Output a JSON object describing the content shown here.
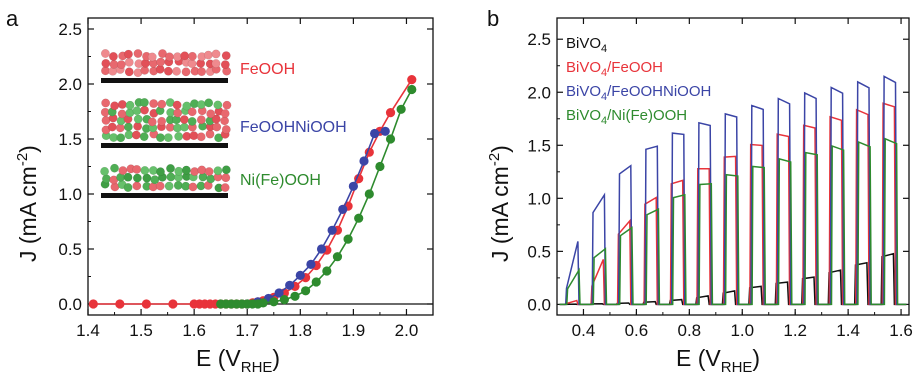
{
  "chart_data": [
    {
      "panel": "a",
      "type": "scatter",
      "xlabel_main": "E (V",
      "xlabel_sub": "RHE",
      "xlabel_close": ")",
      "ylabel_main": "J (mA cm",
      "ylabel_sup": "-2",
      "ylabel_close": ")",
      "xlim": [
        1.4,
        2.05
      ],
      "ylim": [
        -0.1,
        2.6
      ],
      "xticks": [
        1.4,
        1.5,
        1.6,
        1.7,
        1.8,
        1.9,
        2.0
      ],
      "yticks": [
        0.0,
        0.5,
        1.0,
        1.5,
        2.0,
        2.5
      ],
      "zero_line": true,
      "inset_labels": [
        {
          "text": "FeOOH",
          "color": "#e8333a"
        },
        {
          "text": "FeOOHNiOOH",
          "color": "#3b45a6"
        },
        {
          "text": "Ni(Fe)OOH",
          "color": "#2e8b2e"
        }
      ],
      "series": [
        {
          "name": "FeOOH",
          "color": "#e8333a",
          "x": [
            1.41,
            1.46,
            1.51,
            1.56,
            1.6,
            1.61,
            1.62,
            1.63,
            1.64,
            1.65,
            1.66,
            1.67,
            1.68,
            1.69,
            1.7,
            1.71,
            1.72,
            1.73,
            1.75,
            1.77,
            1.79,
            1.81,
            1.83,
            1.85,
            1.87,
            1.89,
            1.91,
            1.93,
            1.95,
            1.97,
            2.01
          ],
          "y": [
            0.0,
            0.0,
            0.0,
            0.0,
            0.0,
            0.0,
            0.0,
            0.0,
            0.0,
            0.0,
            0.0,
            0.0,
            0.0,
            0.0,
            0.0,
            0.01,
            0.02,
            0.03,
            0.06,
            0.1,
            0.16,
            0.24,
            0.35,
            0.49,
            0.67,
            0.89,
            1.14,
            1.38,
            1.57,
            1.74,
            2.04
          ]
        },
        {
          "name": "FeOOHNiOOH",
          "color": "#3b45a6",
          "x": [
            1.7,
            1.72,
            1.74,
            1.76,
            1.78,
            1.8,
            1.82,
            1.84,
            1.86,
            1.88,
            1.9,
            1.92,
            1.94,
            1.96
          ],
          "y": [
            0.0,
            0.02,
            0.05,
            0.1,
            0.17,
            0.26,
            0.36,
            0.5,
            0.67,
            0.86,
            1.07,
            1.3,
            1.55,
            1.57
          ]
        },
        {
          "name": "Ni(Fe)OOH",
          "color": "#2e8b2e",
          "x": [
            1.65,
            1.66,
            1.67,
            1.68,
            1.69,
            1.7,
            1.71,
            1.72,
            1.73,
            1.75,
            1.77,
            1.79,
            1.81,
            1.83,
            1.85,
            1.87,
            1.89,
            1.91,
            1.93,
            1.95,
            1.97,
            1.99,
            2.01
          ],
          "y": [
            0.0,
            0.0,
            0.0,
            0.0,
            0.0,
            0.0,
            0.0,
            0.0,
            0.01,
            0.02,
            0.04,
            0.07,
            0.12,
            0.2,
            0.3,
            0.43,
            0.59,
            0.78,
            1.0,
            1.25,
            1.5,
            1.77,
            1.95
          ]
        }
      ]
    },
    {
      "panel": "b",
      "type": "line",
      "xlabel_main": "E (V",
      "xlabel_sub": "RHE",
      "xlabel_close": ")",
      "ylabel_main": "J (mA cm",
      "ylabel_sup": "-2",
      "ylabel_close": ")",
      "xlim": [
        0.3,
        1.63
      ],
      "ylim": [
        -0.1,
        2.7
      ],
      "xticks": [
        0.4,
        0.6,
        0.8,
        1.0,
        1.2,
        1.4,
        1.6
      ],
      "yticks": [
        0.0,
        0.5,
        1.0,
        1.5,
        2.0,
        2.5
      ],
      "legend_position": "top-left",
      "chopping": {
        "light_on_period": 0.05,
        "first_pulse_start": 0.325
      },
      "series": [
        {
          "name": "BiVO",
          "sub": "4",
          "suffix": "",
          "color": "#111111",
          "envelope_x": [
            0.32,
            0.55,
            0.7,
            0.8,
            0.9,
            1.0,
            1.1,
            1.2,
            1.3,
            1.4,
            1.5,
            1.6
          ],
          "envelope_y": [
            0.0,
            0.01,
            0.03,
            0.05,
            0.09,
            0.14,
            0.18,
            0.22,
            0.27,
            0.34,
            0.41,
            0.5
          ],
          "dark_y": 0.0
        },
        {
          "name": "BiVO",
          "sub": "4",
          "suffix": "/FeOOH",
          "color": "#e8333a",
          "envelope_x": [
            0.32,
            0.4,
            0.45,
            0.5,
            0.6,
            0.7,
            0.8,
            0.9,
            1.0,
            1.1,
            1.2,
            1.3,
            1.4,
            1.5,
            1.6
          ],
          "envelope_y": [
            0.0,
            0.05,
            0.25,
            0.55,
            0.85,
            1.05,
            1.2,
            1.3,
            1.42,
            1.52,
            1.6,
            1.68,
            1.75,
            1.8,
            1.88
          ],
          "dark_y": 0.0
        },
        {
          "name": "BiVO",
          "sub": "4",
          "suffix": "/FeOOHNiOOH",
          "color": "#3b45a6",
          "envelope_x": [
            0.32,
            0.36,
            0.4,
            0.45,
            0.5,
            0.6,
            0.7,
            0.8,
            0.9,
            1.0,
            1.1,
            1.2,
            1.3,
            1.4,
            1.5,
            1.6
          ],
          "envelope_y": [
            0.0,
            0.45,
            0.7,
            0.9,
            1.1,
            1.35,
            1.52,
            1.62,
            1.7,
            1.78,
            1.85,
            1.9,
            1.95,
            2.0,
            2.05,
            2.1
          ],
          "dark_y": 0.0
        },
        {
          "name": "BiVO",
          "sub": "4",
          "suffix": "/Ni(Fe)OOH",
          "color": "#2e8b2e",
          "envelope_x": [
            0.32,
            0.35,
            0.4,
            0.45,
            0.5,
            0.6,
            0.7,
            0.8,
            0.9,
            1.0,
            1.1,
            1.2,
            1.3,
            1.4,
            1.5,
            1.6
          ],
          "envelope_y": [
            0.0,
            0.25,
            0.35,
            0.45,
            0.55,
            0.75,
            0.92,
            1.05,
            1.15,
            1.22,
            1.3,
            1.35,
            1.42,
            1.46,
            1.49,
            1.52
          ],
          "dark_y": 0.0
        }
      ]
    }
  ]
}
